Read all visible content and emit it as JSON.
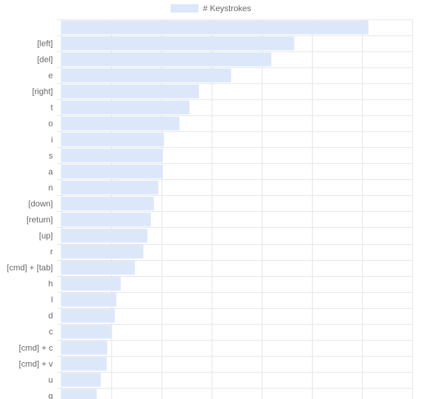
{
  "chart_data": {
    "type": "bar",
    "orientation": "horizontal",
    "legend": {
      "label": "# Keystrokes",
      "position": "top"
    },
    "colors": {
      "bar_fill": "#dce8fa",
      "bar_border": "#dce8fa",
      "grid": "#e5e5e5",
      "text": "#666666"
    },
    "grid": true,
    "xlim": [
      0,
      7
    ],
    "categories": [
      "",
      "[left]",
      "[del]",
      "e",
      "[right]",
      "t",
      "o",
      "i",
      "s",
      "a",
      "n",
      "[down]",
      "[return]",
      "[up]",
      "r",
      "[cmd] + [tab]",
      "h",
      "l",
      "d",
      "c",
      "[cmd] + c",
      "[cmd] + v",
      "u",
      "g"
    ],
    "values": [
      6.12,
      4.64,
      4.18,
      3.38,
      2.74,
      2.55,
      2.35,
      2.04,
      2.02,
      2.02,
      1.93,
      1.84,
      1.78,
      1.71,
      1.63,
      1.46,
      1.18,
      1.09,
      1.06,
      0.99,
      0.91,
      0.9,
      0.78,
      0.7
    ]
  }
}
